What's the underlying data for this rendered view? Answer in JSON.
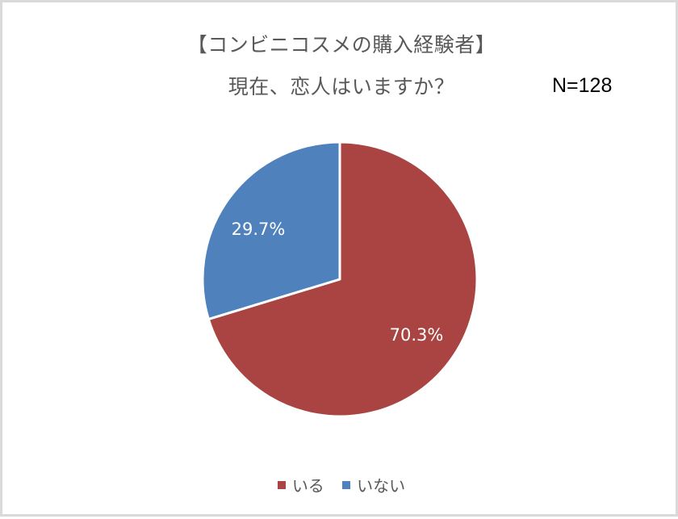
{
  "title": {
    "line1": "【コンビニコスメの購入経験者】",
    "line2": "現在、恋人はいますか？"
  },
  "sample_size": "N=128",
  "legend": [
    {
      "label": "いる",
      "color": "#A94442"
    },
    {
      "label": "いない",
      "color": "#4F81BD"
    }
  ],
  "labels": {
    "yes_pct": "70.3%",
    "no_pct": "29.7%"
  },
  "chart_data": {
    "type": "pie",
    "title": "【コンビニコスメの購入経験者】 現在、恋人はいますか？",
    "annotation": "N=128",
    "categories": [
      "いる",
      "いない"
    ],
    "values": [
      70.3,
      29.7
    ],
    "colors": [
      "#A94442",
      "#4F81BD"
    ],
    "data_labels": [
      "70.3%",
      "29.7%"
    ],
    "start_angle_deg": 0,
    "direction": "clockwise",
    "legend_position": "bottom"
  }
}
